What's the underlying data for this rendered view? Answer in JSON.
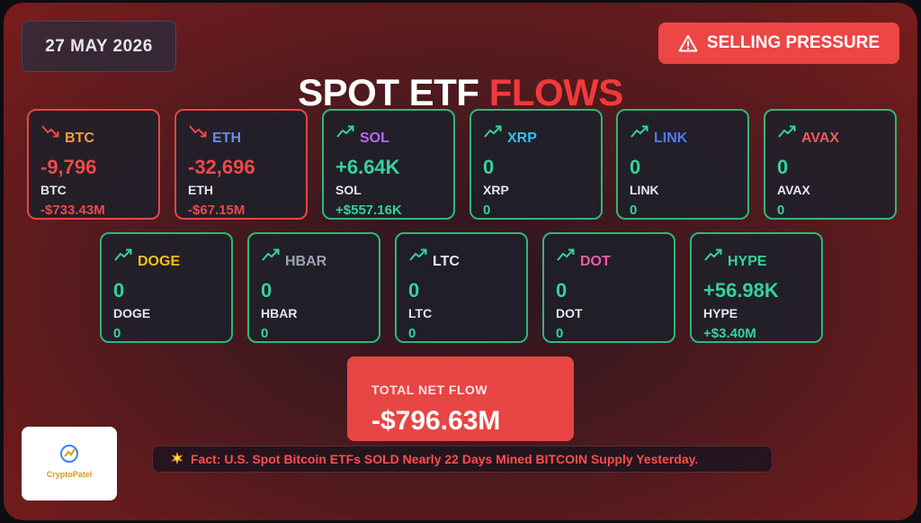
{
  "date": "27 MAY 2026",
  "badge": {
    "icon": "warning-icon",
    "label": "SELLING PRESSURE"
  },
  "title": {
    "part1": "SPOT ETF",
    "part2": "FLOWS"
  },
  "colors": {
    "positive": "#34d399",
    "negative": "#f04848",
    "accent_red": "#e84545"
  },
  "assets": [
    {
      "symbol": "BTC",
      "amount": "-9,796",
      "unit": "BTC",
      "usd": "-$733.43M",
      "trend": "down",
      "symbol_color": "#f59e3b"
    },
    {
      "symbol": "ETH",
      "amount": "-32,696",
      "unit": "ETH",
      "usd": "-$67.15M",
      "trend": "down",
      "symbol_color": "#6b8cf0"
    },
    {
      "symbol": "SOL",
      "amount": "+6.64K",
      "unit": "SOL",
      "usd": "+$557.16K",
      "trend": "up",
      "symbol_color": "#b46cf0"
    },
    {
      "symbol": "XRP",
      "amount": "0",
      "unit": "XRP",
      "usd": "0",
      "trend": "up",
      "symbol_color": "#29c4f0"
    },
    {
      "symbol": "LINK",
      "amount": "0",
      "unit": "LINK",
      "usd": "0",
      "trend": "up",
      "symbol_color": "#4f7bf0"
    },
    {
      "symbol": "AVAX",
      "amount": "0",
      "unit": "AVAX",
      "usd": "0",
      "trend": "up",
      "symbol_color": "#f05a5a"
    },
    {
      "symbol": "DOGE",
      "amount": "0",
      "unit": "DOGE",
      "usd": "0",
      "trend": "up",
      "symbol_color": "#f0c020"
    },
    {
      "symbol": "HBAR",
      "amount": "0",
      "unit": "HBAR",
      "usd": "0",
      "trend": "up",
      "symbol_color": "#9aa3b5"
    },
    {
      "symbol": "LTC",
      "amount": "0",
      "unit": "LTC",
      "usd": "0",
      "trend": "up",
      "symbol_color": "#e6e8ee"
    },
    {
      "symbol": "DOT",
      "amount": "0",
      "unit": "DOT",
      "usd": "0",
      "trend": "up",
      "symbol_color": "#ee5aa8"
    },
    {
      "symbol": "HYPE",
      "amount": "+56.98K",
      "unit": "HYPE",
      "usd": "+$3.40M",
      "trend": "up",
      "symbol_color": "#34d399"
    }
  ],
  "total": {
    "label": "TOTAL NET FLOW",
    "value": "-$796.63M"
  },
  "logo": {
    "text": "CryptoPatel"
  },
  "fact": {
    "icon": "collision-icon",
    "text": "Fact: U.S. Spot Bitcoin ETFs SOLD Nearly 22 Days Mined BITCOIN Supply Yesterday."
  }
}
